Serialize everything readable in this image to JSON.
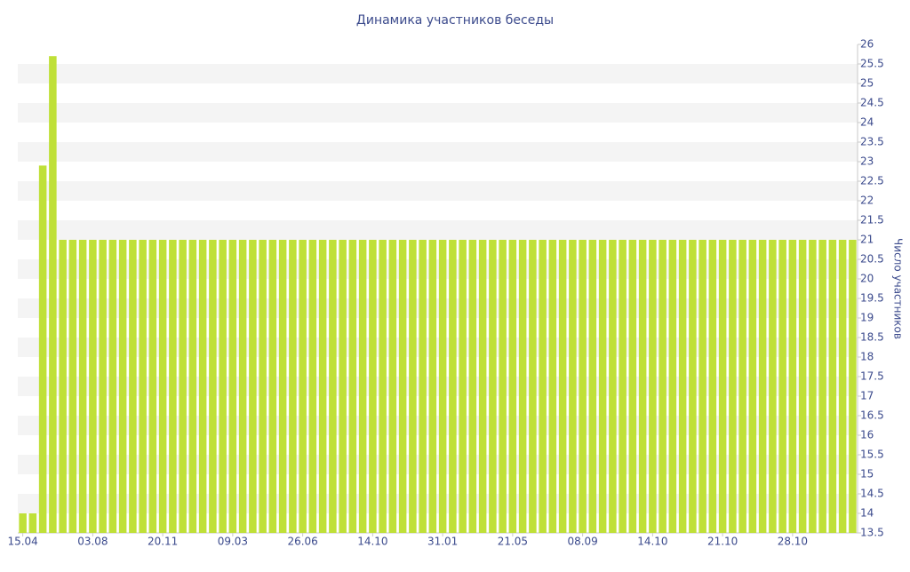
{
  "chart_data": {
    "type": "bar",
    "title": "Динамика участников беседы",
    "y_label": "Число участников",
    "categories": [
      "15.04",
      null,
      null,
      null,
      null,
      null,
      null,
      "03.08",
      null,
      null,
      null,
      null,
      null,
      null,
      "20.11",
      null,
      null,
      null,
      null,
      null,
      null,
      "09.03",
      null,
      null,
      null,
      null,
      null,
      null,
      "26.06",
      null,
      null,
      null,
      null,
      null,
      null,
      "14.10",
      null,
      null,
      null,
      null,
      null,
      null,
      "31.01",
      null,
      null,
      null,
      null,
      null,
      null,
      "21.05",
      null,
      null,
      null,
      null,
      null,
      null,
      "08.09",
      null,
      null,
      null,
      null,
      null,
      null,
      "14.10",
      null,
      null,
      null,
      null,
      null,
      null,
      "21.10",
      null,
      null,
      null,
      null,
      null,
      null,
      "28.10",
      null,
      null,
      null,
      null,
      null,
      null
    ],
    "values": [
      14,
      14,
      22.9,
      25.7,
      21,
      21,
      21,
      21,
      21,
      21,
      21,
      21,
      21,
      21,
      21,
      21,
      21,
      21,
      21,
      21,
      21,
      21,
      21,
      21,
      21,
      21,
      21,
      21,
      21,
      21,
      21,
      21,
      21,
      21,
      21,
      21,
      21,
      21,
      21,
      21,
      21,
      21,
      21,
      21,
      21,
      21,
      21,
      21,
      21,
      21,
      21,
      21,
      21,
      21,
      21,
      21,
      21,
      21,
      21,
      21,
      21,
      21,
      21,
      21,
      21,
      21,
      21,
      21,
      21,
      21,
      21,
      21,
      21,
      21,
      21,
      21,
      21,
      21,
      21,
      21,
      21,
      21,
      21,
      21
    ],
    "color": "#bfe038",
    "ylim": [
      13.5,
      26
    ],
    "yticks": [
      13.5,
      14,
      14.5,
      15,
      15.5,
      16,
      16.5,
      17,
      17.5,
      18,
      18.5,
      19,
      19.5,
      20,
      20.5,
      21,
      21.5,
      22,
      22.5,
      23,
      23.5,
      24,
      24.5,
      25,
      25.5,
      26
    ],
    "grid": true
  }
}
